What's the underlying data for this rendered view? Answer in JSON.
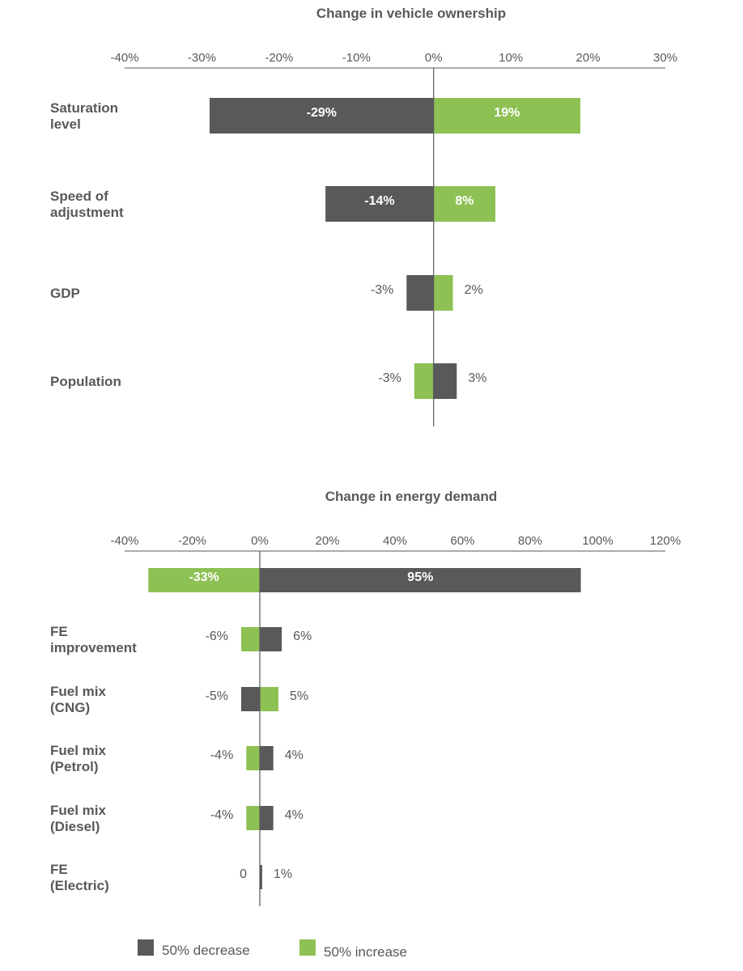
{
  "colors": {
    "decrease": "#58595b",
    "increase": "#8dc153",
    "axis": "#58595b",
    "text": "#58595b"
  },
  "legend": {
    "decrease_label": "50% decrease",
    "increase_label": "50% increase"
  },
  "chart_data": [
    {
      "type": "bar",
      "orientation": "horizontal-tornado",
      "title": "Change in vehicle ownership",
      "xlim": [
        -40,
        30
      ],
      "ticks": [
        -40,
        -30,
        -20,
        -10,
        0,
        10,
        20,
        30
      ],
      "tick_labels": [
        "-40%",
        "-30%",
        "-20%",
        "-10%",
        "0%",
        "10%",
        "20%",
        "30%"
      ],
      "categories": [
        {
          "label": [
            "Saturation",
            "level"
          ],
          "decrease": {
            "value": -29,
            "label": "-29%"
          },
          "increase": {
            "value": 19,
            "label": "19%"
          }
        },
        {
          "label": [
            "Speed of",
            "adjustment"
          ],
          "decrease": {
            "value": -14,
            "label": "-14%"
          },
          "increase": {
            "value": 8,
            "label": "8%"
          }
        },
        {
          "label": [
            "GDP"
          ],
          "decrease": {
            "value": -3.5,
            "label": "-3%"
          },
          "increase": {
            "value": 2.5,
            "label": "2%"
          }
        },
        {
          "label": [
            "Population"
          ],
          "decrease": {
            "value": 3,
            "label": "3%"
          },
          "increase": {
            "value": -2.5,
            "label": "-3%"
          }
        }
      ]
    },
    {
      "type": "bar",
      "orientation": "horizontal-tornado",
      "title": "Change in energy demand",
      "xlim": [
        -40,
        120
      ],
      "ticks": [
        -40,
        -20,
        0,
        20,
        40,
        60,
        80,
        100,
        120
      ],
      "tick_labels": [
        "-40%",
        "-20%",
        "0%",
        "20%",
        "40%",
        "60%",
        "80%",
        "100%",
        "120%"
      ],
      "categories": [
        {
          "label": [],
          "decrease": {
            "value": 95,
            "label": "95%"
          },
          "increase": {
            "value": -33,
            "label": "-33%"
          }
        },
        {
          "label": [
            "FE",
            "improvement"
          ],
          "decrease": {
            "value": 6.5,
            "label": "6%"
          },
          "increase": {
            "value": -5.5,
            "label": "-6%"
          }
        },
        {
          "label": [
            "Fuel mix",
            "(CNG)"
          ],
          "decrease": {
            "value": -5.5,
            "label": "-5%"
          },
          "increase": {
            "value": 5.5,
            "label": "5%"
          }
        },
        {
          "label": [
            "Fuel mix",
            "(Petrol)"
          ],
          "decrease": {
            "value": 4,
            "label": "4%"
          },
          "increase": {
            "value": -4,
            "label": "-4%"
          }
        },
        {
          "label": [
            "Fuel mix",
            "(Diesel)"
          ],
          "decrease": {
            "value": 4,
            "label": "4%"
          },
          "increase": {
            "value": -4,
            "label": "-4%"
          }
        },
        {
          "label": [
            "FE",
            "(Electric)"
          ],
          "decrease": {
            "value": 0.7,
            "label": "1%"
          },
          "increase": {
            "value": 0,
            "label": "0"
          }
        }
      ]
    }
  ]
}
